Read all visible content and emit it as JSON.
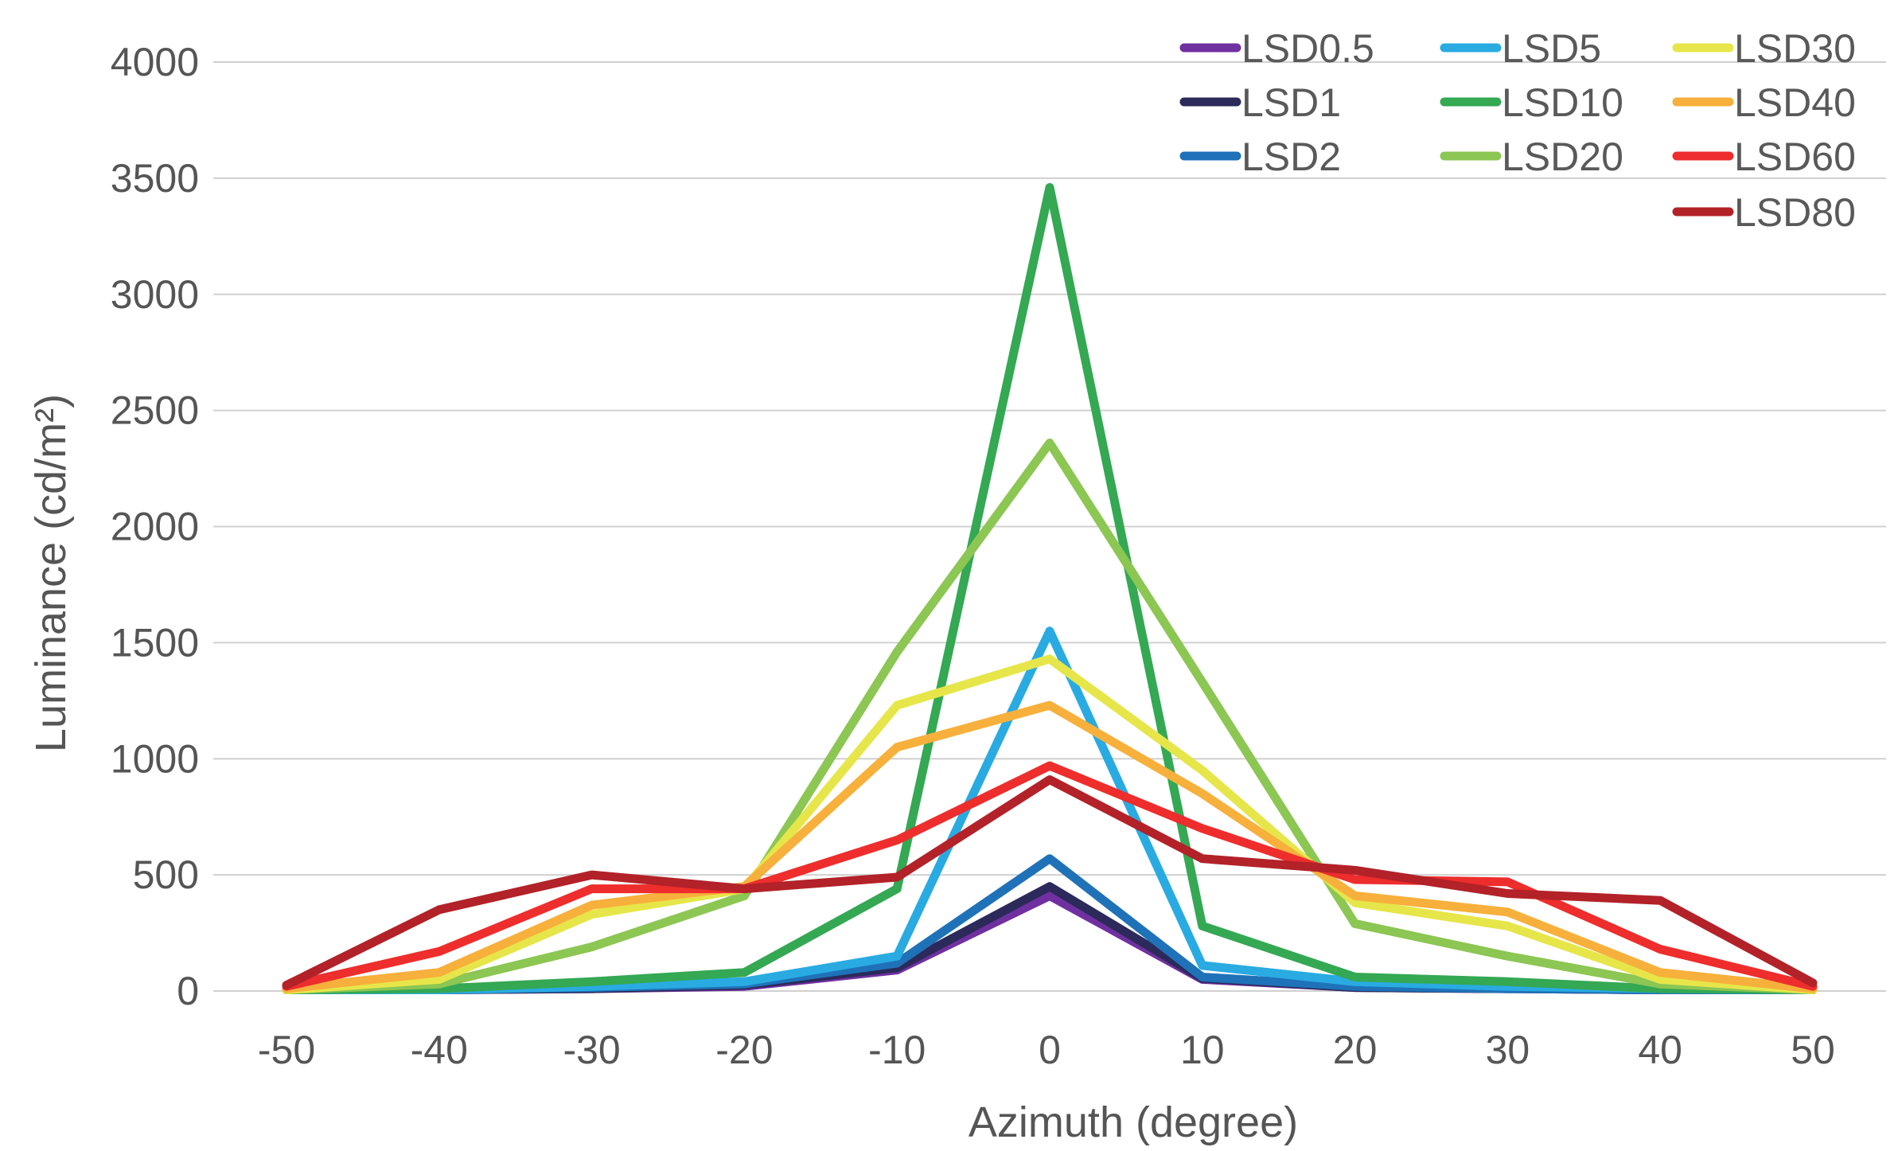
{
  "chart_data": {
    "type": "line",
    "title": "",
    "xlabel": "Azimuth (degree)",
    "ylabel": "Luminance (cd/m²)",
    "categories": [
      "-50",
      "-40",
      "-30",
      "-20",
      "-10",
      "0",
      "10",
      "20",
      "30",
      "40",
      "50"
    ],
    "x": [
      -50,
      -40,
      -30,
      -20,
      -10,
      0,
      10,
      20,
      30,
      40,
      50
    ],
    "ylim": [
      0,
      4000
    ],
    "yticks": [
      "0",
      "500",
      "1000",
      "1500",
      "2000",
      "2500",
      "3000",
      "3500",
      "4000"
    ],
    "grid": true,
    "legend_position": "top-right",
    "series": [
      {
        "name": "LSD0.5",
        "color": "#7030a0",
        "values": [
          5,
          5,
          10,
          20,
          90,
          410,
          50,
          15,
          10,
          5,
          5
        ]
      },
      {
        "name": "LSD1",
        "color": "#2b2a5a",
        "values": [
          5,
          5,
          10,
          25,
          100,
          450,
          55,
          15,
          10,
          5,
          5
        ]
      },
      {
        "name": "LSD2",
        "color": "#1f72b8",
        "values": [
          5,
          5,
          15,
          30,
          120,
          570,
          60,
          20,
          10,
          5,
          5
        ]
      },
      {
        "name": "LSD5",
        "color": "#29abe2",
        "values": [
          5,
          5,
          20,
          40,
          150,
          1550,
          110,
          40,
          20,
          10,
          5
        ]
      },
      {
        "name": "LSD10",
        "color": "#34a853",
        "values": [
          5,
          10,
          40,
          80,
          440,
          3460,
          280,
          60,
          40,
          10,
          5
        ]
      },
      {
        "name": "LSD20",
        "color": "#8cc653",
        "values": [
          5,
          30,
          190,
          410,
          1460,
          2360,
          1330,
          290,
          150,
          30,
          5
        ]
      },
      {
        "name": "LSD30",
        "color": "#e6e64a",
        "values": [
          5,
          50,
          330,
          440,
          1230,
          1430,
          950,
          380,
          280,
          50,
          5
        ]
      },
      {
        "name": "LSD40",
        "color": "#f7b03b",
        "values": [
          10,
          80,
          370,
          450,
          1050,
          1230,
          850,
          410,
          340,
          80,
          10
        ]
      },
      {
        "name": "LSD60",
        "color": "#ee2d2d",
        "values": [
          20,
          170,
          440,
          440,
          650,
          970,
          700,
          480,
          470,
          180,
          20
        ]
      },
      {
        "name": "LSD80",
        "color": "#b22228",
        "values": [
          25,
          350,
          500,
          440,
          490,
          910,
          570,
          520,
          420,
          390,
          35
        ]
      }
    ]
  }
}
